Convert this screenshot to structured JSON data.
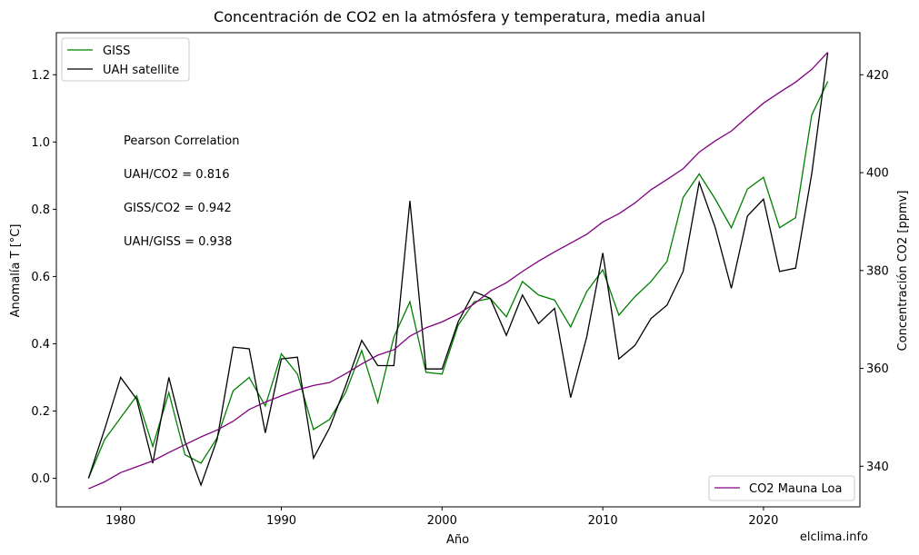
{
  "chart_data": {
    "type": "line",
    "title": "Concentración de CO2 en la atmósfera y temperatura, media anual",
    "xlabel": "Año",
    "ylabel_left": "Anomalía T [°C]",
    "ylabel_right": "Concentración CO2 [ppmv]",
    "xlim": [
      1976,
      2026
    ],
    "ylim_left": [
      -0.085,
      1.325
    ],
    "ylim_right": [
      331.7,
      428.6
    ],
    "x_ticks": [
      1980,
      1990,
      2000,
      2010,
      2020
    ],
    "y_ticks_left": [
      0.0,
      0.2,
      0.4,
      0.6,
      0.8,
      1.0,
      1.2
    ],
    "y_ticks_left_labels": [
      "0.0",
      "0.2",
      "0.4",
      "0.6",
      "0.8",
      "1.0",
      "1.2"
    ],
    "y_ticks_right": [
      340,
      360,
      380,
      400,
      420
    ],
    "grid": false,
    "legend_left_position": "upper-left",
    "legend_right_position": "lower-right",
    "x": [
      1978,
      1979,
      1980,
      1981,
      1982,
      1983,
      1984,
      1985,
      1986,
      1987,
      1988,
      1989,
      1990,
      1991,
      1992,
      1993,
      1994,
      1995,
      1996,
      1997,
      1998,
      1999,
      2000,
      2001,
      2002,
      2003,
      2004,
      2005,
      2006,
      2007,
      2008,
      2009,
      2010,
      2011,
      2012,
      2013,
      2014,
      2015,
      2016,
      2017,
      2018,
      2019,
      2020,
      2021,
      2022,
      2023,
      2024
    ],
    "series": [
      {
        "name": "GISS",
        "axis": "left",
        "color": "#008000",
        "values": [
          0.0,
          0.115,
          0.18,
          0.245,
          0.095,
          0.255,
          0.07,
          0.045,
          0.12,
          0.26,
          0.3,
          0.215,
          0.37,
          0.31,
          0.145,
          0.175,
          0.255,
          0.38,
          0.225,
          0.42,
          0.525,
          0.315,
          0.31,
          0.455,
          0.525,
          0.535,
          0.48,
          0.585,
          0.545,
          0.53,
          0.45,
          0.555,
          0.62,
          0.485,
          0.54,
          0.585,
          0.645,
          0.835,
          0.905,
          0.83,
          0.745,
          0.86,
          0.895,
          0.745,
          0.775,
          1.08,
          1.18
        ]
      },
      {
        "name": "UAH satellite",
        "axis": "left",
        "color": "#000000",
        "values": [
          0.0,
          0.145,
          0.3,
          0.235,
          0.045,
          0.3,
          0.11,
          -0.02,
          0.115,
          0.39,
          0.385,
          0.135,
          0.355,
          0.36,
          0.06,
          0.15,
          0.275,
          0.41,
          0.335,
          0.335,
          0.825,
          0.325,
          0.325,
          0.465,
          0.555,
          0.535,
          0.425,
          0.545,
          0.46,
          0.505,
          0.24,
          0.42,
          0.67,
          0.355,
          0.395,
          0.475,
          0.515,
          0.615,
          0.88,
          0.745,
          0.565,
          0.78,
          0.83,
          0.615,
          0.625,
          0.905,
          1.265
        ]
      },
      {
        "name": "CO2 Mauna Loa",
        "axis": "right",
        "color": "#800080",
        "values": [
          335.4,
          336.8,
          338.7,
          339.9,
          341.1,
          342.8,
          344.4,
          346.0,
          347.4,
          349.2,
          351.6,
          353.1,
          354.4,
          355.6,
          356.5,
          357.1,
          358.9,
          360.9,
          362.7,
          363.8,
          366.6,
          368.3,
          369.5,
          371.1,
          373.2,
          375.8,
          377.5,
          379.8,
          381.9,
          383.8,
          385.6,
          387.4,
          389.9,
          391.6,
          393.8,
          396.5,
          398.6,
          400.8,
          404.2,
          406.5,
          408.5,
          411.4,
          414.2,
          416.4,
          418.5,
          421.1,
          424.6
        ]
      }
    ],
    "annotations": [
      "Pearson Correlation",
      "UAH/CO2 = 0.816",
      "GISS/CO2 = 0.942",
      "UAH/GISS = 0.938"
    ],
    "watermark": "elclima.info"
  }
}
